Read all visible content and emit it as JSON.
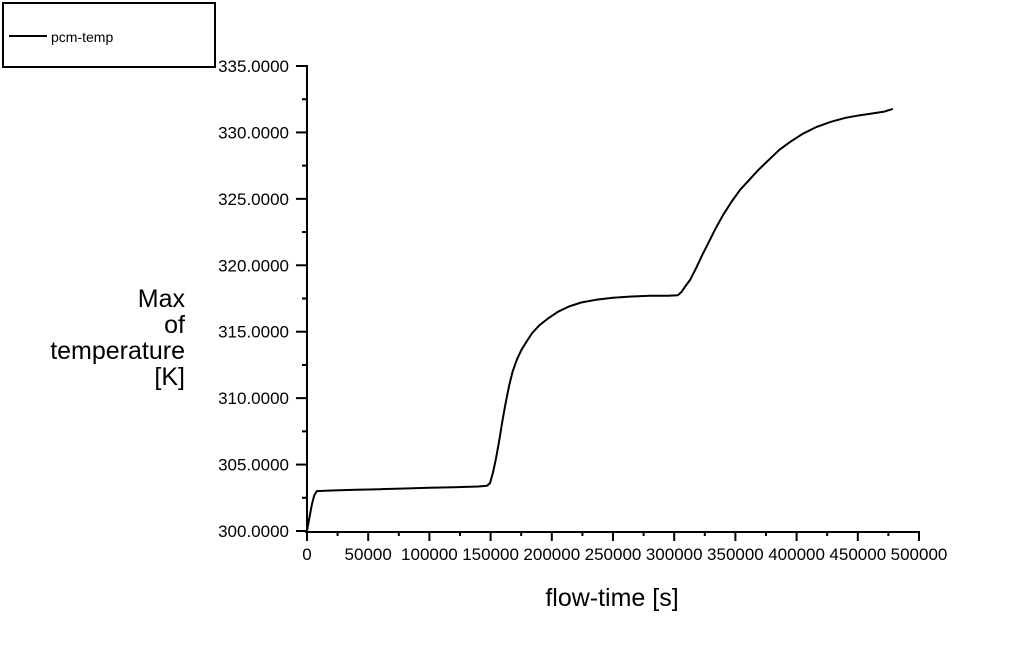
{
  "legend": {
    "label": "pcm-temp",
    "line_color": "#000000"
  },
  "colors": {
    "background": "#ffffff",
    "axis": "#000000",
    "text": "#000000",
    "series": "#000000"
  },
  "chart_data": {
    "type": "line",
    "title": "",
    "xlabel": "flow-time [s]",
    "ylabel": "Max\nof\ntemperature\n[K]",
    "xlim": [
      0,
      500000
    ],
    "ylim": [
      300,
      335
    ],
    "grid": false,
    "legend_position": "top-left",
    "x_ticks": [
      0,
      50000,
      100000,
      150000,
      200000,
      250000,
      300000,
      350000,
      400000,
      450000,
      500000
    ],
    "x_tick_labels": [
      "0",
      "50000",
      "100000",
      "150000",
      "200000",
      "250000",
      "300000",
      "350000",
      "400000",
      "450000",
      "500000"
    ],
    "x_minor_ticks": [
      25000,
      75000,
      125000,
      175000,
      225000,
      275000,
      325000,
      375000,
      425000,
      475000
    ],
    "y_ticks": [
      300,
      305,
      310,
      315,
      320,
      325,
      330,
      335
    ],
    "y_tick_labels": [
      "300.0000",
      "305.0000",
      "310.0000",
      "315.0000",
      "320.0000",
      "325.0000",
      "330.0000",
      "335.0000"
    ],
    "y_minor_ticks": [
      302.5,
      307.5,
      312.5,
      317.5,
      322.5,
      327.5,
      332.5
    ],
    "series": [
      {
        "name": "pcm-temp",
        "color": "#000000",
        "points": [
          [
            0,
            300.0
          ],
          [
            2000,
            301.0
          ],
          [
            4000,
            302.0
          ],
          [
            6000,
            302.7
          ],
          [
            8000,
            303.0
          ],
          [
            20000,
            303.05
          ],
          [
            40000,
            303.1
          ],
          [
            60000,
            303.15
          ],
          [
            80000,
            303.2
          ],
          [
            100000,
            303.25
          ],
          [
            120000,
            303.3
          ],
          [
            140000,
            303.35
          ],
          [
            147000,
            303.4
          ],
          [
            149500,
            303.6
          ],
          [
            152000,
            304.4
          ],
          [
            154500,
            305.5
          ],
          [
            157000,
            306.8
          ],
          [
            159500,
            308.2
          ],
          [
            162000,
            309.5
          ],
          [
            165000,
            310.9
          ],
          [
            168000,
            312.0
          ],
          [
            171500,
            312.9
          ],
          [
            175000,
            313.6
          ],
          [
            179000,
            314.2
          ],
          [
            184000,
            314.9
          ],
          [
            190000,
            315.5
          ],
          [
            197000,
            316.0
          ],
          [
            205000,
            316.5
          ],
          [
            214000,
            316.9
          ],
          [
            224000,
            317.2
          ],
          [
            236000,
            317.4
          ],
          [
            250000,
            317.55
          ],
          [
            265000,
            317.65
          ],
          [
            280000,
            317.7
          ],
          [
            295000,
            317.7
          ],
          [
            303000,
            317.75
          ],
          [
            306000,
            318.0
          ],
          [
            309000,
            318.4
          ],
          [
            313000,
            318.9
          ],
          [
            318000,
            319.8
          ],
          [
            323000,
            320.8
          ],
          [
            328000,
            321.7
          ],
          [
            334000,
            322.8
          ],
          [
            340000,
            323.8
          ],
          [
            347000,
            324.8
          ],
          [
            354000,
            325.7
          ],
          [
            361000,
            326.4
          ],
          [
            369000,
            327.2
          ],
          [
            377000,
            327.9
          ],
          [
            386000,
            328.7
          ],
          [
            395000,
            329.3
          ],
          [
            405000,
            329.9
          ],
          [
            416000,
            330.4
          ],
          [
            428000,
            330.8
          ],
          [
            440000,
            331.1
          ],
          [
            452000,
            331.3
          ],
          [
            463000,
            331.45
          ],
          [
            471000,
            331.55
          ],
          [
            478000,
            331.75
          ]
        ]
      }
    ]
  }
}
